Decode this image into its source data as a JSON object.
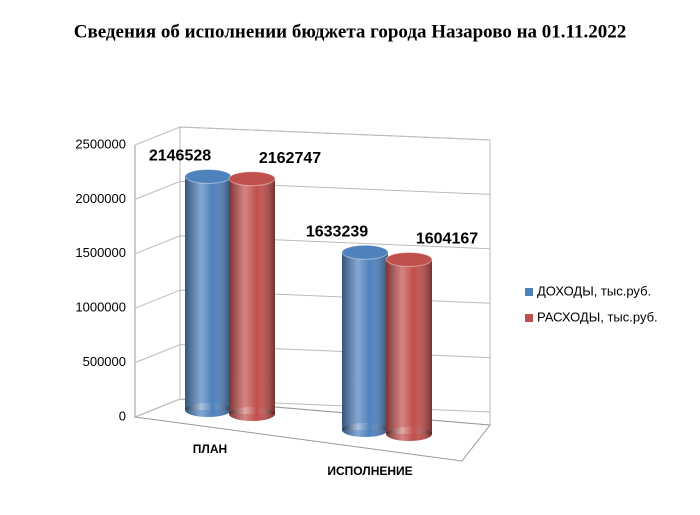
{
  "chart_data": {
    "type": "bar3d",
    "title": "Сведения об исполнении бюджета города Назарово на 01.11.2022",
    "categories": [
      "ПЛАН",
      "ИСПОЛНЕНИЕ"
    ],
    "series": [
      {
        "name": "ДОХОДЫ, тыс.руб.",
        "color": "#4f81bd",
        "values": [
          2146528,
          1633239
        ]
      },
      {
        "name": "РАСХОДЫ, тыс.руб.",
        "color": "#c0504d",
        "values": [
          2162747,
          1604167
        ]
      }
    ],
    "ylim": [
      0,
      2500000
    ],
    "yticks": [
      0,
      500000,
      1000000,
      1500000,
      2000000,
      2500000
    ],
    "grid": true,
    "legend": "right"
  }
}
